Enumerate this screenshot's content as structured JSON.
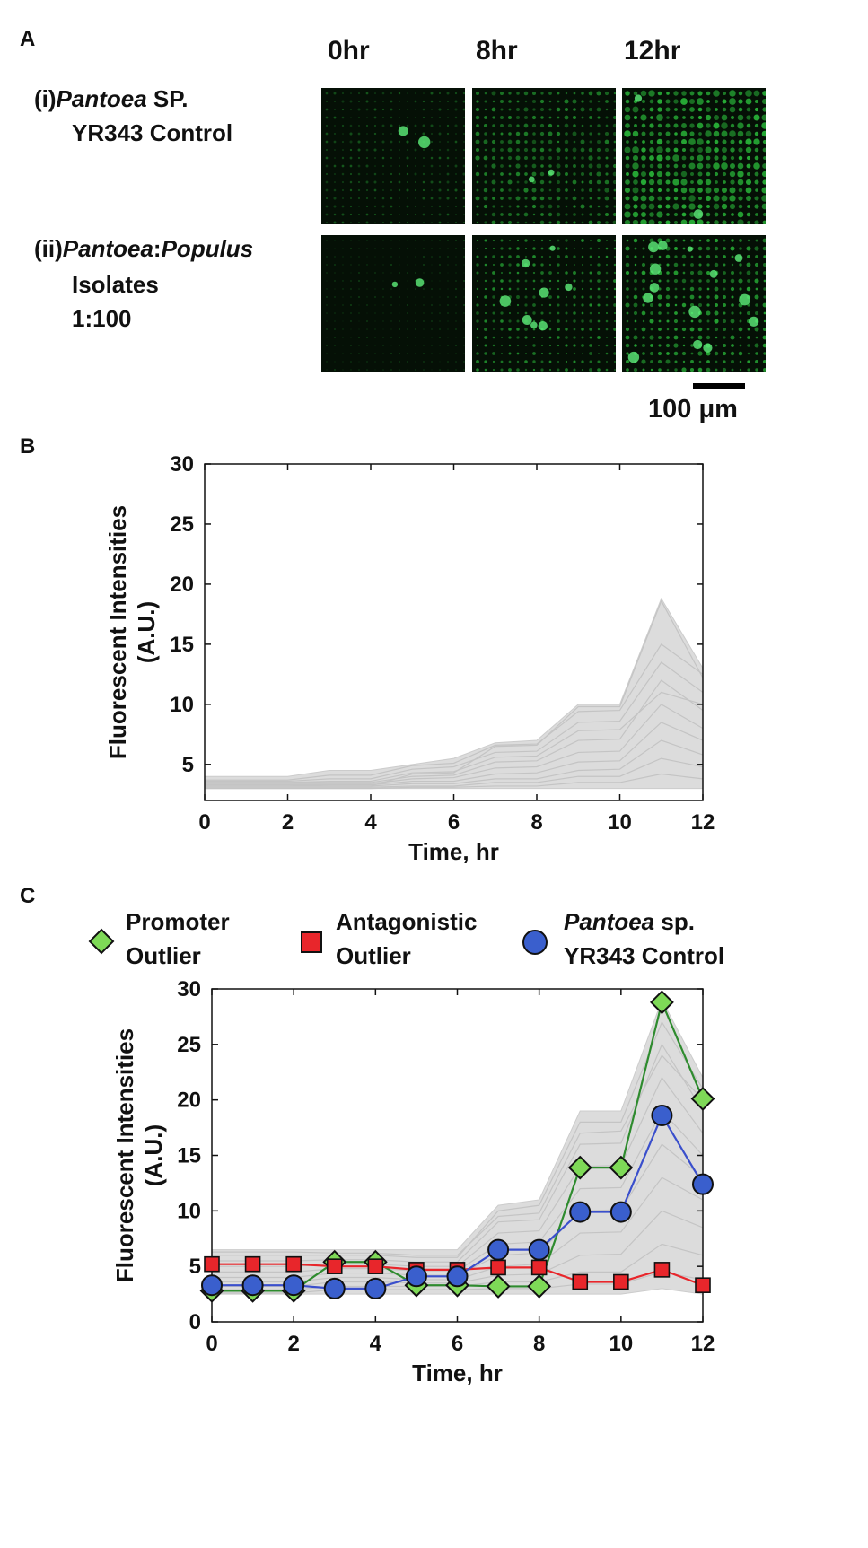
{
  "panel_a": {
    "letter": "A",
    "time_headers": [
      "0hr",
      "8hr",
      "12hr"
    ],
    "row1": {
      "roman": "(i)",
      "genus": "Pantoea",
      "rest": " SP.",
      "line2": "YR343 Control"
    },
    "row2": {
      "roman": "(ii)",
      "genus1": "Pantoea",
      "sep": ":",
      "genus2": "Populus",
      "line2": "Isolates",
      "line3": "1:100"
    },
    "scale_label": "100 μm",
    "colors": {
      "background": "#051006",
      "fluorescence": "#2ecc40"
    }
  },
  "panel_b": {
    "letter": "B"
  },
  "panel_c": {
    "letter": "C",
    "legend": [
      {
        "marker": "diamond",
        "color": "#7ed957",
        "line1": "Promoter",
        "line2": "Outlier"
      },
      {
        "marker": "square",
        "color": "#e8262b",
        "line1": "Antagonistic",
        "line2": "Outlier"
      },
      {
        "marker": "circle",
        "color": "#3a5fcd",
        "line1_ital": "Pantoea",
        "line1_rest": " sp.",
        "line2": "YR343 Control"
      }
    ]
  },
  "chart_data": [
    {
      "type": "line",
      "panel": "B",
      "xlabel": "Time, hr",
      "ylabel": "Fluorescent Intensities\n(A.U.)",
      "xlim": [
        0,
        12
      ],
      "ylim": [
        2,
        30
      ],
      "xticks": [
        0,
        2,
        4,
        6,
        8,
        10,
        12
      ],
      "yticks": [
        5,
        10,
        15,
        20,
        25,
        30
      ],
      "x": [
        0,
        1,
        2,
        3,
        4,
        5,
        6,
        7,
        8,
        9,
        10,
        11,
        12
      ],
      "series_description_color": "#cccccc",
      "envelope": {
        "upper": [
          4.0,
          4.0,
          4.0,
          4.5,
          4.5,
          5.0,
          5.5,
          6.8,
          7.0,
          10.0,
          10.0,
          18.8,
          13.0
        ],
        "lower": [
          3.0,
          3.0,
          3.0,
          3.0,
          3.0,
          3.0,
          3.0,
          3.0,
          3.0,
          3.0,
          3.0,
          3.0,
          3.0
        ]
      },
      "series": [
        {
          "values": [
            3.3,
            3.3,
            3.3,
            3.2,
            3.2,
            4.2,
            4.3,
            6.5,
            6.6,
            9.8,
            9.8,
            18.6,
            12.2
          ]
        },
        {
          "values": [
            3.6,
            3.6,
            3.6,
            3.8,
            3.8,
            4.6,
            4.8,
            6.0,
            6.1,
            8.5,
            8.6,
            13.5,
            11.0
          ]
        },
        {
          "values": [
            3.5,
            3.5,
            3.5,
            3.5,
            3.5,
            4.0,
            4.1,
            5.2,
            5.3,
            7.0,
            7.1,
            12.0,
            9.5
          ]
        },
        {
          "values": [
            3.4,
            3.4,
            3.4,
            3.4,
            3.4,
            3.8,
            3.9,
            4.7,
            4.8,
            6.0,
            6.1,
            10.0,
            8.0
          ]
        },
        {
          "values": [
            3.3,
            3.3,
            3.3,
            3.3,
            3.3,
            3.6,
            3.6,
            4.2,
            4.3,
            5.2,
            5.3,
            8.5,
            7.0
          ]
        },
        {
          "values": [
            3.2,
            3.2,
            3.2,
            3.2,
            3.2,
            3.4,
            3.4,
            3.8,
            3.8,
            4.5,
            4.6,
            7.0,
            5.8
          ]
        },
        {
          "values": [
            3.1,
            3.1,
            3.1,
            3.1,
            3.1,
            3.2,
            3.2,
            3.5,
            3.5,
            4.0,
            4.0,
            5.5,
            4.8
          ]
        },
        {
          "values": [
            3.0,
            3.0,
            3.0,
            3.0,
            3.0,
            3.1,
            3.1,
            3.2,
            3.2,
            3.5,
            3.5,
            4.2,
            3.8
          ]
        },
        {
          "values": [
            3.7,
            3.7,
            3.7,
            4.1,
            4.1,
            4.9,
            5.1,
            6.6,
            6.7,
            9.4,
            9.5,
            15.0,
            12.5
          ]
        },
        {
          "values": [
            3.5,
            3.5,
            3.5,
            3.6,
            3.6,
            4.3,
            4.4,
            5.6,
            5.7,
            7.8,
            7.9,
            11.0,
            10.0
          ]
        }
      ]
    },
    {
      "type": "line",
      "panel": "C",
      "xlabel": "Time, hr",
      "ylabel": "Fluorescent Intensities\n(A.U.)",
      "xlim": [
        0,
        12
      ],
      "ylim": [
        0,
        30
      ],
      "xticks": [
        0,
        2,
        4,
        6,
        8,
        10,
        12
      ],
      "yticks": [
        0,
        5,
        10,
        15,
        20,
        25,
        30
      ],
      "x": [
        0,
        1,
        2,
        3,
        4,
        5,
        6,
        7,
        8,
        9,
        10,
        11,
        12
      ],
      "envelope": {
        "upper": [
          6.5,
          6.5,
          6.5,
          6.5,
          6.5,
          6.5,
          6.5,
          10.5,
          11.0,
          19.0,
          19.0,
          29.0,
          22.0
        ],
        "lower": [
          2.5,
          2.5,
          2.5,
          2.5,
          2.5,
          2.5,
          2.5,
          2.5,
          2.5,
          2.5,
          2.5,
          3.0,
          2.5
        ]
      },
      "background_series": [
        {
          "values": [
            6.0,
            6.0,
            6.0,
            6.0,
            6.0,
            5.8,
            5.8,
            10.0,
            10.5,
            18.0,
            18.0,
            27.0,
            21.0
          ]
        },
        {
          "values": [
            5.5,
            5.5,
            5.5,
            5.6,
            5.6,
            5.4,
            5.4,
            9.0,
            9.2,
            16.0,
            16.1,
            25.0,
            19.0
          ]
        },
        {
          "values": [
            5.0,
            5.0,
            5.0,
            5.2,
            5.2,
            5.0,
            5.0,
            8.0,
            8.2,
            14.0,
            14.1,
            22.0,
            17.0
          ]
        },
        {
          "values": [
            4.5,
            4.5,
            4.5,
            4.8,
            4.8,
            4.6,
            4.6,
            7.0,
            7.2,
            12.0,
            12.1,
            19.0,
            15.0
          ]
        },
        {
          "values": [
            4.0,
            4.0,
            4.0,
            4.4,
            4.4,
            4.2,
            4.2,
            6.0,
            6.2,
            10.0,
            10.1,
            16.0,
            13.0
          ]
        },
        {
          "values": [
            3.6,
            3.6,
            3.6,
            4.0,
            4.0,
            3.8,
            3.8,
            5.0,
            5.2,
            8.0,
            8.1,
            13.0,
            11.0
          ]
        },
        {
          "values": [
            3.2,
            3.2,
            3.2,
            3.6,
            3.6,
            3.5,
            3.5,
            4.2,
            4.3,
            6.0,
            6.1,
            10.0,
            8.5
          ]
        },
        {
          "values": [
            2.9,
            2.9,
            2.9,
            3.2,
            3.2,
            3.2,
            3.2,
            3.6,
            3.6,
            4.5,
            4.5,
            7.0,
            6.0
          ]
        },
        {
          "values": [
            2.6,
            2.6,
            2.6,
            2.9,
            2.9,
            2.9,
            2.9,
            3.0,
            3.0,
            3.4,
            3.4,
            4.5,
            3.8
          ]
        },
        {
          "values": [
            6.3,
            6.3,
            6.3,
            6.2,
            6.2,
            6.0,
            6.0,
            9.5,
            9.8,
            17.0,
            17.2,
            24.0,
            20.0
          ]
        }
      ],
      "series": [
        {
          "name": "Promoter Outlier",
          "marker": "diamond",
          "color": "#2e8b2e",
          "marker_color": "#7ed957",
          "values": [
            2.8,
            2.8,
            2.8,
            5.4,
            5.4,
            3.3,
            3.3,
            3.2,
            3.2,
            13.9,
            13.9,
            28.8,
            20.1
          ]
        },
        {
          "name": "Antagonistic Outlier",
          "marker": "square",
          "color": "#e8262b",
          "marker_color": "#e8262b",
          "values": [
            5.2,
            5.2,
            5.2,
            5.0,
            5.0,
            4.7,
            4.7,
            4.9,
            4.9,
            3.6,
            3.6,
            4.7,
            3.3
          ]
        },
        {
          "name": "Pantoea sp. YR343 Control",
          "marker": "circle",
          "color": "#3a4fcc",
          "marker_color": "#3a5fcd",
          "values": [
            3.3,
            3.3,
            3.3,
            3.0,
            3.0,
            4.1,
            4.1,
            6.5,
            6.5,
            9.9,
            9.9,
            18.6,
            12.4
          ]
        }
      ]
    }
  ]
}
